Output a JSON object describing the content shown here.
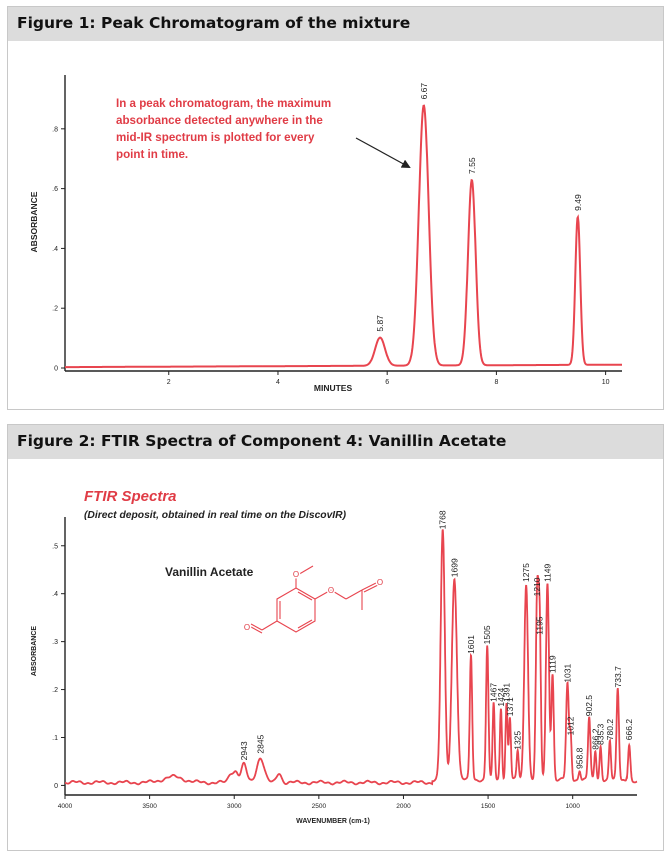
{
  "colors": {
    "series": "#e8454f",
    "annotation": "#e03c46",
    "axis": "#222222",
    "header_bg": "#dcdcdc"
  },
  "figure1": {
    "header": "Figure 1: Peak Chromatogram of the mixture",
    "annotation": [
      "In a peak chromatogram, the maximum",
      "absorbance detected anywhere in the",
      "mid-IR spectrum is plotted for every",
      "point in time."
    ]
  },
  "figure2": {
    "header": "Figure 2: FTIR Spectra of Component 4: Vanillin Acetate",
    "subtitle_title": "FTIR Spectra",
    "subtitle_note": "(Direct deposit, obtained in real time on the DiscovIR)",
    "compound_label": "Vanillin Acetate",
    "molecule_icon": "vanillin-acetate-structure-icon"
  },
  "chart_data": [
    {
      "type": "line",
      "title": "Figure 1: Peak Chromatogram of the mixture",
      "xlabel": "MINUTES",
      "ylabel": "ABSORBANCE",
      "xlim": [
        0.1,
        10.3
      ],
      "ylim": [
        -0.01,
        0.98
      ],
      "xticks": [
        2,
        4,
        6,
        8,
        10
      ],
      "xtick_labels": [
        "2",
        "4",
        "6",
        "8",
        "10"
      ],
      "yticks": [
        0,
        0.2,
        0.4,
        0.6,
        0.8
      ],
      "ytick_labels": [
        "0",
        ".2",
        ".4",
        ".6",
        ".8"
      ],
      "baseline": 0.003,
      "baseline_slope": 0.0008,
      "peaks": [
        {
          "x": 5.87,
          "height": 0.094,
          "width": 0.09,
          "label": "5.87"
        },
        {
          "x": 6.67,
          "height": 0.87,
          "width": 0.09,
          "label": "6.67"
        },
        {
          "x": 7.55,
          "height": 0.62,
          "width": 0.07,
          "label": "7.55"
        },
        {
          "x": 9.49,
          "height": 0.495,
          "width": 0.045,
          "label": "9.49"
        }
      ],
      "series": [
        {
          "name": "Peak chromatogram",
          "x": [
            0.1,
            5.6,
            5.87,
            6.1,
            6.4,
            6.67,
            6.95,
            7.35,
            7.55,
            7.75,
            9.35,
            9.49,
            9.63,
            10.3
          ],
          "values": [
            0.003,
            0.008,
            0.097,
            0.012,
            0.03,
            0.875,
            0.04,
            0.016,
            0.627,
            0.016,
            0.012,
            0.505,
            0.012,
            0.011
          ]
        }
      ]
    },
    {
      "type": "line",
      "title": "FTIR Spectra",
      "xlabel": "WAVENUMBER (cm-1)",
      "ylabel": "ABSORBANCE",
      "xlim": [
        4000,
        620
      ],
      "ylim": [
        -0.02,
        0.56
      ],
      "xticks": [
        4000,
        3500,
        3000,
        2500,
        2000,
        1500,
        1000
      ],
      "xtick_labels": [
        "4000",
        "3500",
        "3000",
        "2500",
        "2000",
        "1500",
        "1000"
      ],
      "yticks": [
        0,
        0.1,
        0.2,
        0.3,
        0.4,
        0.5
      ],
      "ytick_labels": [
        "0",
        ".1",
        ".2",
        ".3",
        ".4",
        ".5"
      ],
      "baseline": 0.006,
      "bands": [
        {
          "x": 3360,
          "height": 0.012,
          "width": 60
        },
        {
          "x": 3020,
          "height": 0.018,
          "width": 14
        },
        {
          "x": 2990,
          "height": 0.022,
          "width": 14
        },
        {
          "x": 2943,
          "height": 0.038,
          "width": 16,
          "label": "2943"
        },
        {
          "x": 2845,
          "height": 0.052,
          "width": 22,
          "label": "2845"
        },
        {
          "x": 2735,
          "height": 0.02,
          "width": 14
        },
        {
          "x": 1768,
          "height": 0.52,
          "width": 12,
          "label": "1768"
        },
        {
          "x": 1699,
          "height": 0.42,
          "width": 15,
          "label": "1699"
        },
        {
          "x": 1601,
          "height": 0.26,
          "width": 7,
          "label": "1601"
        },
        {
          "x": 1505,
          "height": 0.28,
          "width": 7,
          "label": "1505"
        },
        {
          "x": 1467,
          "height": 0.16,
          "width": 6,
          "label": "1467"
        },
        {
          "x": 1424,
          "height": 0.15,
          "width": 6,
          "label": "1424"
        },
        {
          "x": 1391,
          "height": 0.16,
          "width": 6,
          "label": "1391"
        },
        {
          "x": 1371,
          "height": 0.13,
          "width": 6,
          "label": "1371"
        },
        {
          "x": 1325,
          "height": 0.06,
          "width": 6,
          "label": "1325"
        },
        {
          "x": 1275,
          "height": 0.41,
          "width": 11,
          "label": "1275"
        },
        {
          "x": 1210,
          "height": 0.38,
          "width": 8,
          "label": "1210"
        },
        {
          "x": 1195,
          "height": 0.3,
          "width": 7,
          "label": "1195"
        },
        {
          "x": 1149,
          "height": 0.41,
          "width": 9,
          "label": "1149"
        },
        {
          "x": 1119,
          "height": 0.22,
          "width": 7,
          "label": "1119"
        },
        {
          "x": 1031,
          "height": 0.2,
          "width": 8,
          "label": "1031"
        },
        {
          "x": 1012,
          "height": 0.09,
          "width": 6,
          "label": "1012"
        },
        {
          "x": 958.8,
          "height": 0.02,
          "width": 6,
          "label": "958.8"
        },
        {
          "x": 902.5,
          "height": 0.13,
          "width": 7,
          "label": "902.5"
        },
        {
          "x": 866.2,
          "height": 0.06,
          "width": 6,
          "label": "866.2"
        },
        {
          "x": 835.3,
          "height": 0.07,
          "width": 6,
          "label": "835.3"
        },
        {
          "x": 780.2,
          "height": 0.08,
          "width": 6,
          "label": "780.2"
        },
        {
          "x": 733.7,
          "height": 0.19,
          "width": 7,
          "label": "733.7"
        },
        {
          "x": 666.2,
          "height": 0.08,
          "width": 7,
          "label": "666.2"
        }
      ],
      "series": [
        {
          "name": "Vanillin Acetate",
          "x": [
            4000,
            3360,
            2943,
            2845,
            2000,
            1768,
            1699,
            1601,
            1505,
            1275,
            1210,
            1149,
            1031,
            902.5,
            733.7,
            666.2,
            620
          ],
          "values": [
            0.006,
            0.018,
            0.044,
            0.058,
            0.006,
            0.526,
            0.426,
            0.266,
            0.286,
            0.416,
            0.386,
            0.416,
            0.206,
            0.136,
            0.196,
            0.086,
            0.008
          ]
        }
      ]
    }
  ]
}
